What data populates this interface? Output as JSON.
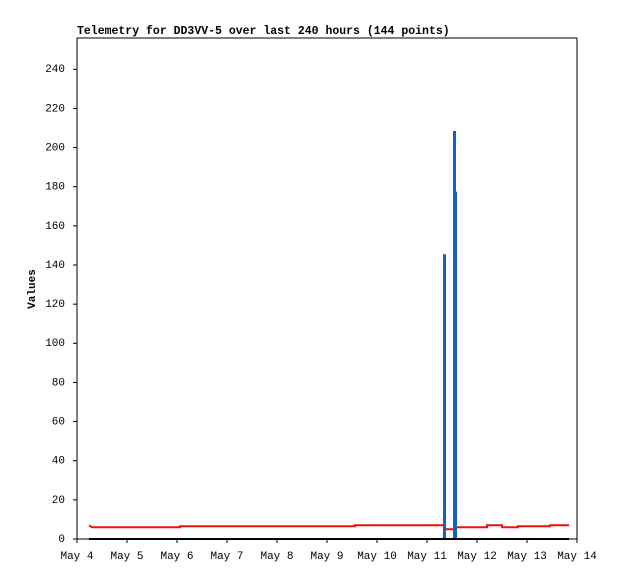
{
  "chart_data": {
    "type": "line",
    "title": "Telemetry for DD3VV-5 over last 240 hours (144 points)",
    "y_label": "Values",
    "xlim": [
      4,
      14
    ],
    "xticks": [
      {
        "value": 4,
        "label": "May 4"
      },
      {
        "value": 5,
        "label": "May 5"
      },
      {
        "value": 6,
        "label": "May 6"
      },
      {
        "value": 7,
        "label": "May 7"
      },
      {
        "value": 8,
        "label": "May 8"
      },
      {
        "value": 9,
        "label": "May 9"
      },
      {
        "value": 10,
        "label": "May 10"
      },
      {
        "value": 11,
        "label": "May 11"
      },
      {
        "value": 12,
        "label": "May 12"
      },
      {
        "value": 13,
        "label": "May 13"
      },
      {
        "value": 14,
        "label": "May 14"
      }
    ],
    "ylim": [
      0,
      256
    ],
    "yticks": [
      0,
      20,
      40,
      60,
      80,
      100,
      120,
      140,
      160,
      180,
      200,
      220,
      240
    ],
    "grid": false,
    "series": [
      {
        "color": "#e8140a",
        "x": [
          4.24,
          4.3,
          6.06,
          6.06,
          9.56,
          9.56,
          11.36,
          11.36,
          11.56,
          11.56,
          12.2,
          12.2,
          12.5,
          12.5,
          12.82,
          12.82,
          13.46,
          13.46,
          13.84
        ],
        "values": [
          7,
          6,
          6,
          6.5,
          6.5,
          7,
          7,
          5,
          5,
          6,
          6,
          7,
          7,
          6,
          6,
          6.5,
          6.5,
          7,
          7
        ]
      },
      {
        "color": "#1560bd",
        "x": [
          11.34,
          11.34,
          11.36,
          11.36,
          11.54,
          11.54,
          11.56,
          11.56,
          11.58,
          11.58
        ],
        "values": [
          0,
          145,
          145,
          0,
          0,
          208,
          208,
          177,
          177,
          0
        ]
      },
      {
        "color": "#000000",
        "x": [
          4.24,
          13.84
        ],
        "values": [
          0,
          0
        ]
      }
    ]
  }
}
